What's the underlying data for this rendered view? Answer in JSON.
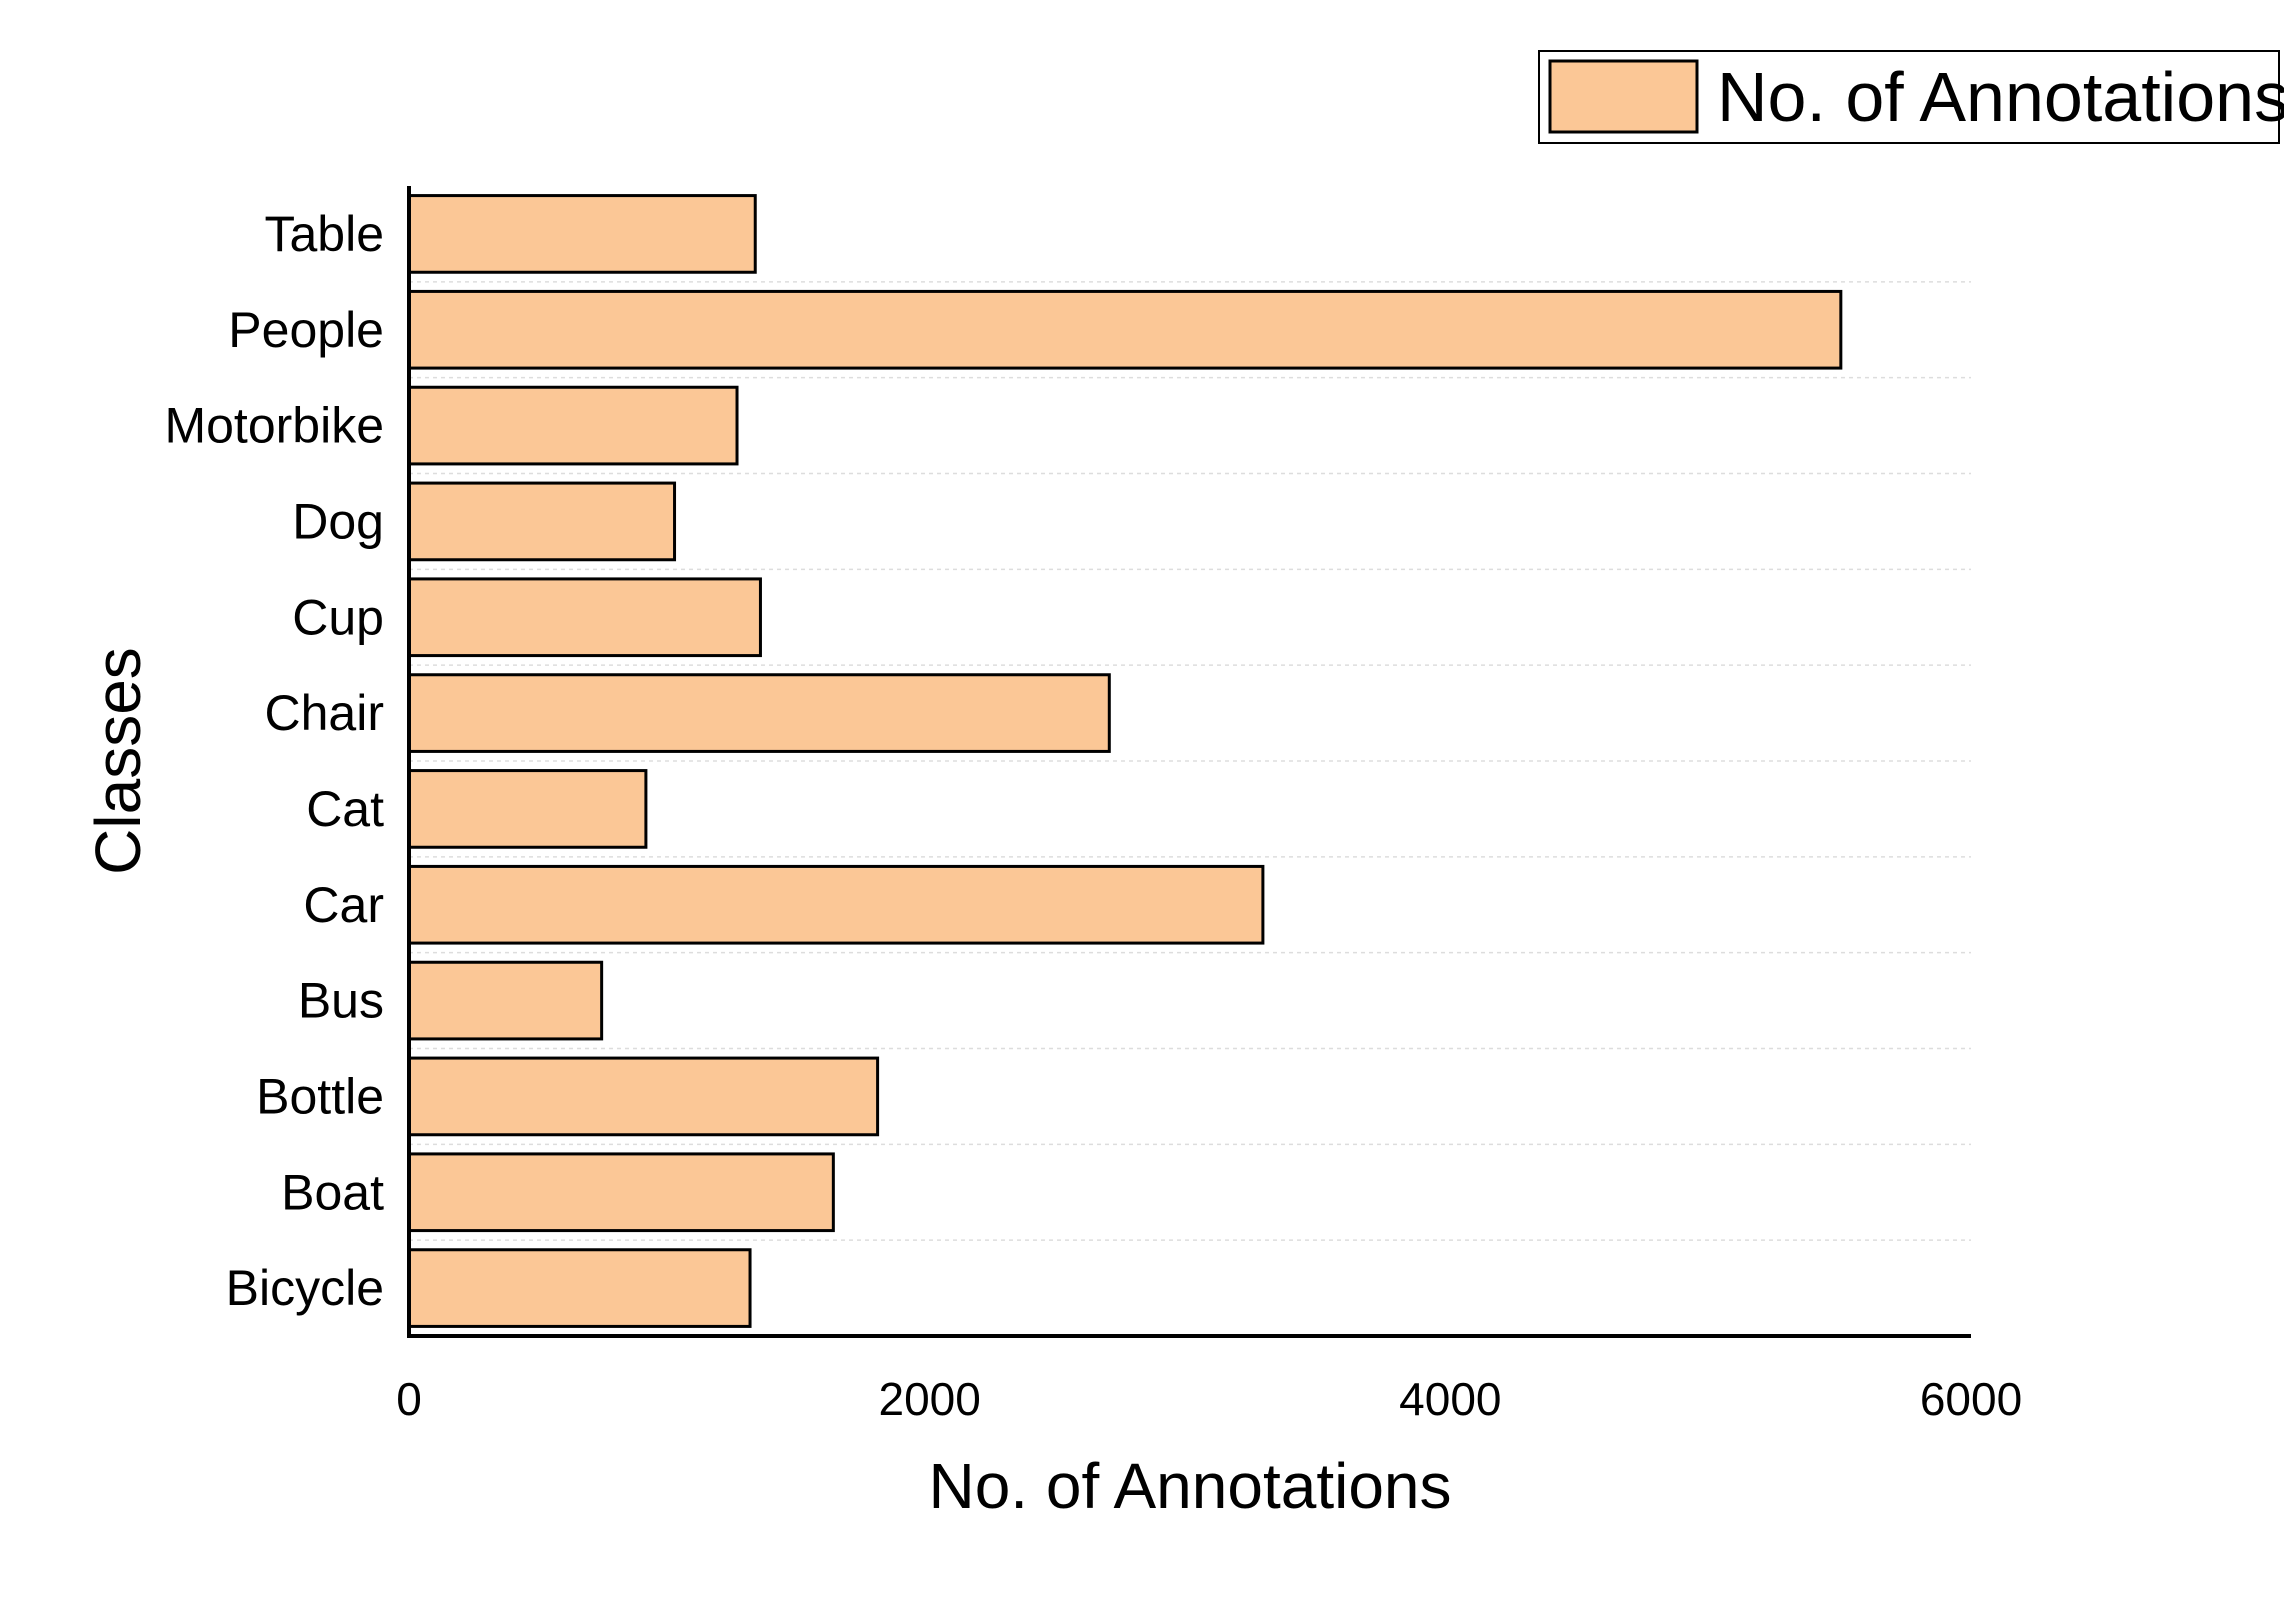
{
  "chart_data": {
    "type": "bar",
    "orientation": "horizontal",
    "categories": [
      "Bicycle",
      "Boat",
      "Bottle",
      "Bus",
      "Car",
      "Cat",
      "Chair",
      "Cup",
      "Dog",
      "Motorbike",
      "People",
      "Table"
    ],
    "series": [
      {
        "name": "No. of Annotations",
        "values": [
          1310,
          1630,
          1800,
          740,
          3280,
          910,
          2690,
          1350,
          1020,
          1260,
          5500,
          1330
        ]
      }
    ],
    "title": "",
    "xlabel": "No. of Annotations",
    "ylabel": "Classes",
    "xlim": [
      0,
      6000
    ],
    "xticks": [
      0,
      2000,
      4000,
      6000
    ],
    "grid": "horizontal dashed",
    "legend_position": "top-right",
    "colors": {
      "bar_fill": "#FBC796",
      "bar_edge": "#000000",
      "grid": "#dddddd",
      "axis": "#000000"
    }
  }
}
